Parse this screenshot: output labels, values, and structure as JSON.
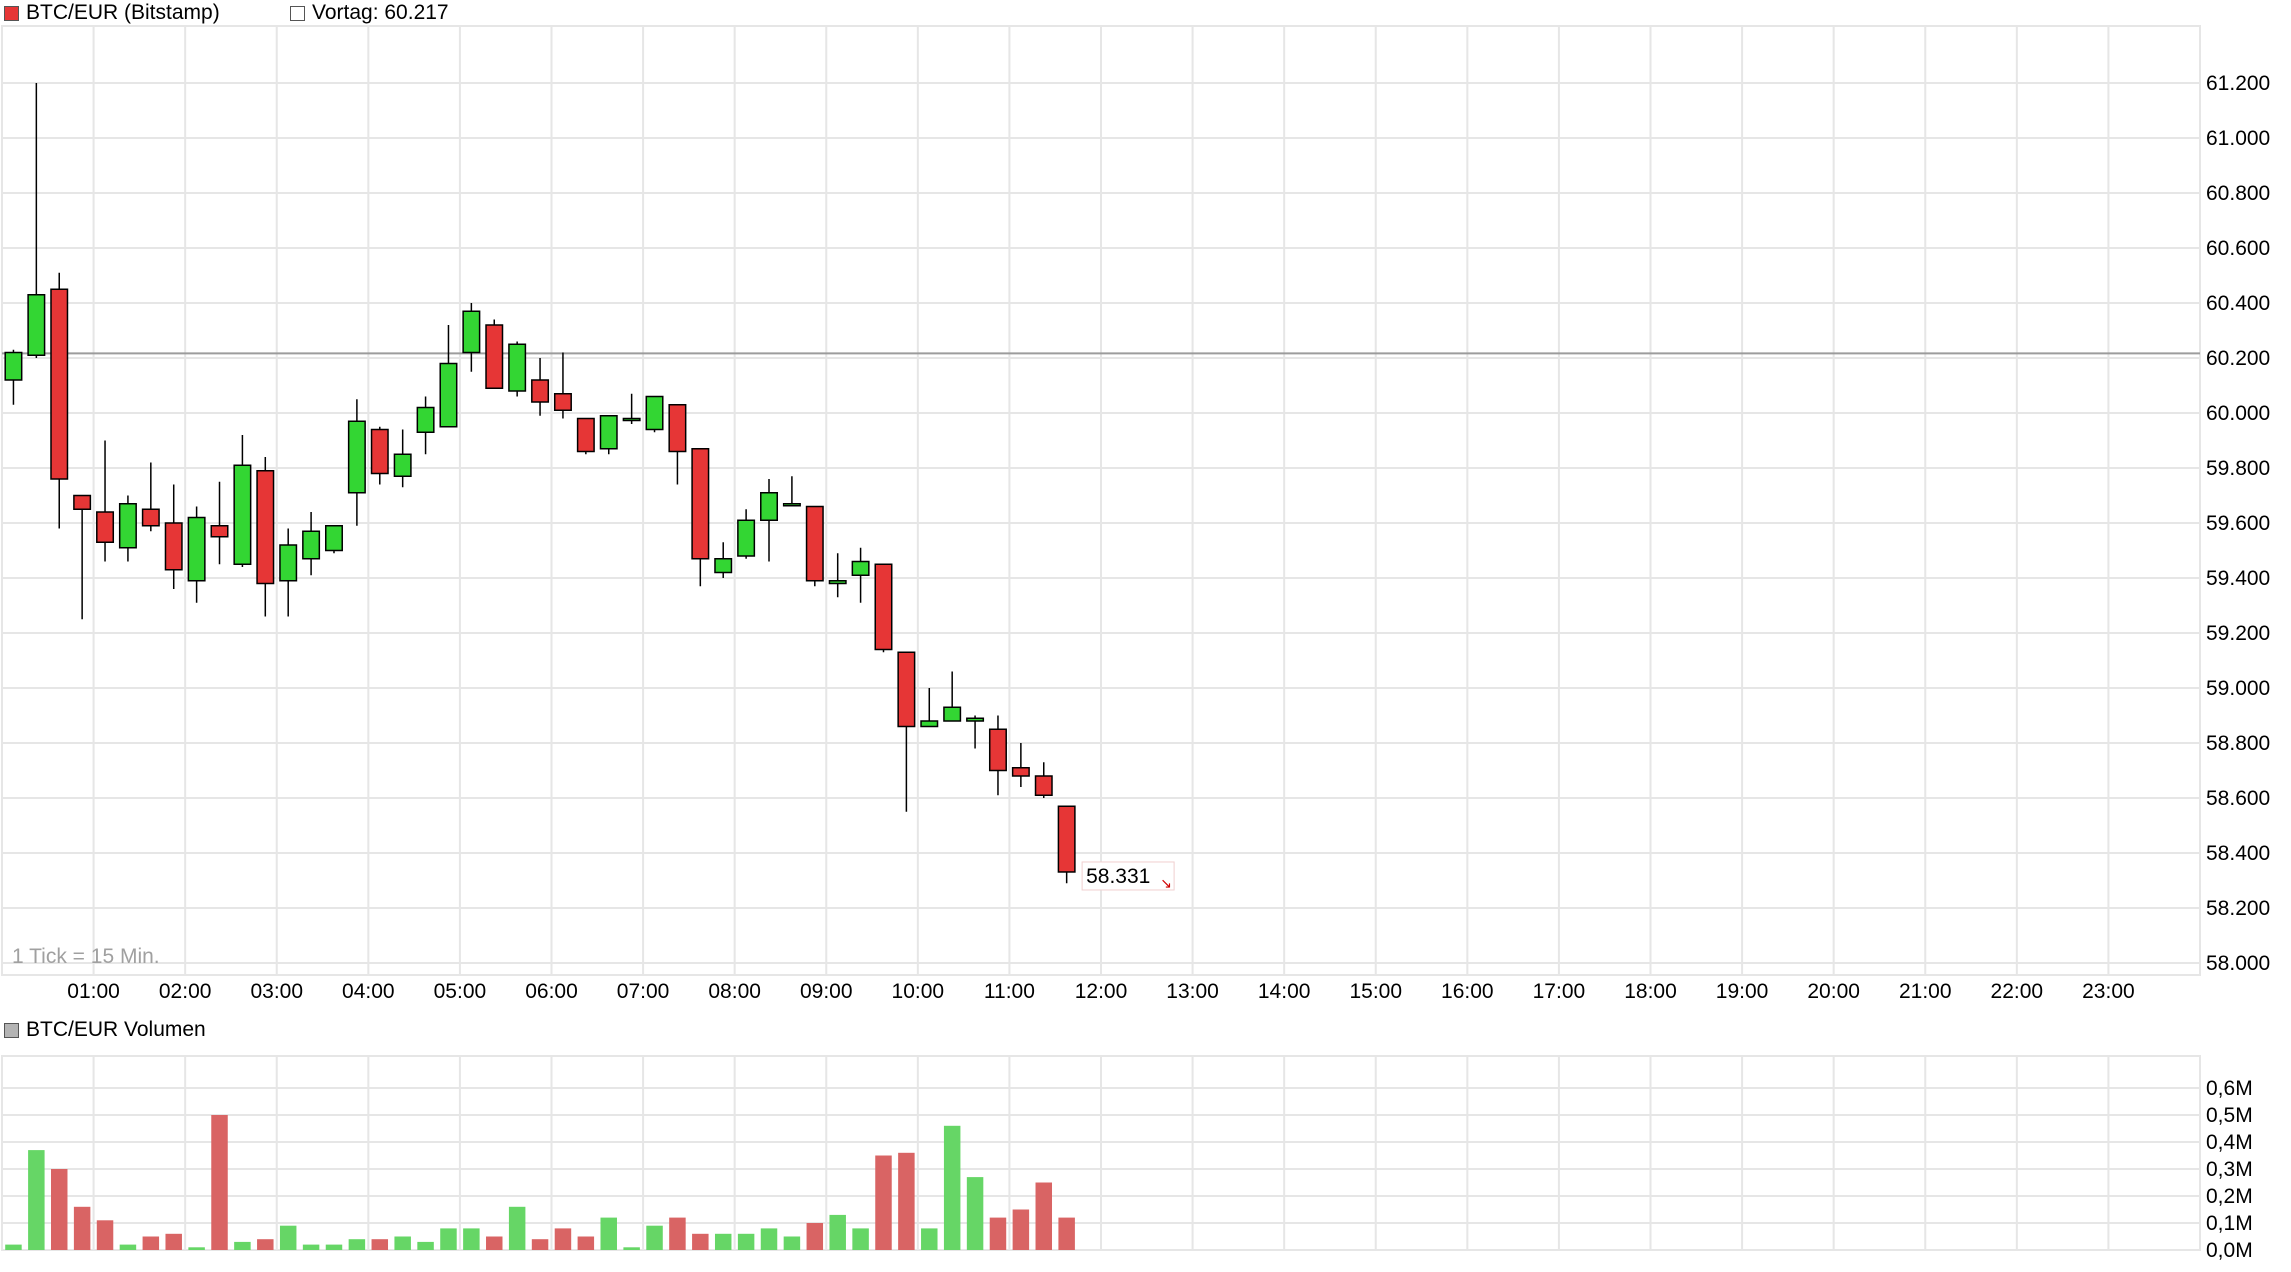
{
  "legends": {
    "price_series": "BTC/EUR (Bitstamp)",
    "previous_close": "Vortag: 60.217",
    "volume_series": "BTC/EUR Volumen"
  },
  "tick_note": "1 Tick = 15 Min.",
  "last_price_label": "58.331",
  "colors": {
    "up": "#33d633",
    "down": "#e63636",
    "volume_up": "#66d666",
    "volume_down": "#d96464",
    "grid": "#e6e6e6",
    "previous_close_line": "#9c9c9c",
    "last_price_arrow": "#d00000"
  },
  "chart_data": [
    {
      "type": "candlestick",
      "title": "BTC/EUR (Bitstamp)",
      "interval": "15 Min.",
      "previous_close": 60217,
      "last_price": 58331,
      "ylim": [
        58000,
        61200
      ],
      "y_ticks": [
        58000,
        58200,
        58400,
        58600,
        58800,
        59000,
        59200,
        59400,
        59600,
        59800,
        60000,
        60200,
        60400,
        60600,
        60800,
        61000,
        61200
      ],
      "y_tick_labels": [
        "58.000",
        "58.200",
        "58.400",
        "58.600",
        "58.800",
        "59.000",
        "59.200",
        "59.400",
        "59.600",
        "59.800",
        "60.000",
        "60.200",
        "60.400",
        "60.600",
        "60.800",
        "61.000",
        "61.200"
      ],
      "x_ticks": [
        "01:00",
        "02:00",
        "03:00",
        "04:00",
        "05:00",
        "06:00",
        "07:00",
        "08:00",
        "09:00",
        "10:00",
        "11:00",
        "12:00",
        "13:00",
        "14:00",
        "15:00",
        "16:00",
        "17:00",
        "18:00",
        "19:00",
        "20:00",
        "21:00",
        "22:00",
        "23:00"
      ],
      "grid": true,
      "candles": [
        {
          "t": "00:00",
          "o": 60120,
          "h": 60230,
          "l": 60030,
          "c": 60220
        },
        {
          "t": "00:15",
          "o": 60210,
          "h": 61200,
          "l": 60200,
          "c": 60430
        },
        {
          "t": "00:30",
          "o": 60450,
          "h": 60510,
          "l": 59580,
          "c": 59760
        },
        {
          "t": "00:45",
          "o": 59700,
          "h": 59700,
          "l": 59250,
          "c": 59650
        },
        {
          "t": "01:00",
          "o": 59640,
          "h": 59900,
          "l": 59460,
          "c": 59530
        },
        {
          "t": "01:15",
          "o": 59510,
          "h": 59700,
          "l": 59460,
          "c": 59670
        },
        {
          "t": "01:30",
          "o": 59650,
          "h": 59820,
          "l": 59570,
          "c": 59590
        },
        {
          "t": "01:45",
          "o": 59600,
          "h": 59740,
          "l": 59360,
          "c": 59430
        },
        {
          "t": "02:00",
          "o": 59390,
          "h": 59660,
          "l": 59310,
          "c": 59620
        },
        {
          "t": "02:15",
          "o": 59590,
          "h": 59750,
          "l": 59450,
          "c": 59550
        },
        {
          "t": "02:30",
          "o": 59450,
          "h": 59920,
          "l": 59440,
          "c": 59810
        },
        {
          "t": "02:45",
          "o": 59790,
          "h": 59840,
          "l": 59260,
          "c": 59380
        },
        {
          "t": "03:00",
          "o": 59390,
          "h": 59580,
          "l": 59260,
          "c": 59520
        },
        {
          "t": "03:15",
          "o": 59470,
          "h": 59640,
          "l": 59410,
          "c": 59570
        },
        {
          "t": "03:30",
          "o": 59500,
          "h": 59590,
          "l": 59490,
          "c": 59590
        },
        {
          "t": "03:45",
          "o": 59710,
          "h": 60050,
          "l": 59590,
          "c": 59970
        },
        {
          "t": "04:00",
          "o": 59940,
          "h": 59950,
          "l": 59740,
          "c": 59780
        },
        {
          "t": "04:15",
          "o": 59770,
          "h": 59940,
          "l": 59730,
          "c": 59850
        },
        {
          "t": "04:30",
          "o": 59930,
          "h": 60060,
          "l": 59850,
          "c": 60020
        },
        {
          "t": "04:45",
          "o": 59950,
          "h": 60320,
          "l": 59950,
          "c": 60180
        },
        {
          "t": "05:00",
          "o": 60220,
          "h": 60400,
          "l": 60150,
          "c": 60370
        },
        {
          "t": "05:15",
          "o": 60320,
          "h": 60340,
          "l": 60090,
          "c": 60090
        },
        {
          "t": "05:30",
          "o": 60080,
          "h": 60260,
          "l": 60060,
          "c": 60250
        },
        {
          "t": "05:45",
          "o": 60120,
          "h": 60200,
          "l": 59990,
          "c": 60040
        },
        {
          "t": "06:00",
          "o": 60070,
          "h": 60220,
          "l": 59980,
          "c": 60010
        },
        {
          "t": "06:15",
          "o": 59980,
          "h": 59980,
          "l": 59850,
          "c": 59860
        },
        {
          "t": "06:30",
          "o": 59870,
          "h": 59990,
          "l": 59850,
          "c": 59990
        },
        {
          "t": "06:45",
          "o": 59980,
          "h": 60070,
          "l": 59960,
          "c": 59980
        },
        {
          "t": "07:00",
          "o": 59940,
          "h": 60060,
          "l": 59930,
          "c": 60060
        },
        {
          "t": "07:15",
          "o": 60030,
          "h": 60030,
          "l": 59740,
          "c": 59860
        },
        {
          "t": "07:30",
          "o": 59870,
          "h": 59870,
          "l": 59370,
          "c": 59470
        },
        {
          "t": "07:45",
          "o": 59420,
          "h": 59530,
          "l": 59400,
          "c": 59470
        },
        {
          "t": "08:00",
          "o": 59480,
          "h": 59650,
          "l": 59470,
          "c": 59610
        },
        {
          "t": "08:15",
          "o": 59610,
          "h": 59760,
          "l": 59460,
          "c": 59710
        },
        {
          "t": "08:30",
          "o": 59670,
          "h": 59770,
          "l": 59660,
          "c": 59670
        },
        {
          "t": "08:45",
          "o": 59660,
          "h": 59660,
          "l": 59370,
          "c": 59390
        },
        {
          "t": "09:00",
          "o": 59380,
          "h": 59490,
          "l": 59330,
          "c": 59390
        },
        {
          "t": "09:15",
          "o": 59410,
          "h": 59510,
          "l": 59310,
          "c": 59460
        },
        {
          "t": "09:30",
          "o": 59450,
          "h": 59450,
          "l": 59130,
          "c": 59140
        },
        {
          "t": "09:45",
          "o": 59130,
          "h": 59130,
          "l": 58550,
          "c": 58860
        },
        {
          "t": "10:00",
          "o": 58860,
          "h": 59000,
          "l": 58860,
          "c": 58880
        },
        {
          "t": "10:15",
          "o": 58880,
          "h": 59060,
          "l": 58880,
          "c": 58930
        },
        {
          "t": "10:30",
          "o": 58880,
          "h": 58900,
          "l": 58780,
          "c": 58890
        },
        {
          "t": "10:45",
          "o": 58850,
          "h": 58900,
          "l": 58610,
          "c": 58700
        },
        {
          "t": "11:00",
          "o": 58710,
          "h": 58800,
          "l": 58640,
          "c": 58680
        },
        {
          "t": "11:15",
          "o": 58680,
          "h": 58730,
          "l": 58600,
          "c": 58610
        },
        {
          "t": "11:30",
          "o": 58570,
          "h": 58570,
          "l": 58290,
          "c": 58331
        }
      ]
    },
    {
      "type": "bar",
      "title": "BTC/EUR Volumen",
      "unit": "M",
      "ylim": [
        0,
        0.6
      ],
      "y_ticks": [
        0,
        0.1,
        0.2,
        0.3,
        0.4,
        0.5,
        0.6
      ],
      "y_tick_labels": [
        "0,0M",
        "0,1M",
        "0,2M",
        "0,3M",
        "0,4M",
        "0,5M",
        "0,6M"
      ],
      "values": [
        0.02,
        0.37,
        0.3,
        0.16,
        0.11,
        0.02,
        0.05,
        0.06,
        0.01,
        0.5,
        0.03,
        0.04,
        0.09,
        0.02,
        0.02,
        0.04,
        0.04,
        0.05,
        0.03,
        0.08,
        0.08,
        0.05,
        0.16,
        0.04,
        0.08,
        0.05,
        0.12,
        0.01,
        0.09,
        0.12,
        0.06,
        0.06,
        0.06,
        0.08,
        0.05,
        0.1,
        0.13,
        0.08,
        0.35,
        0.36,
        0.08,
        0.46,
        0.27,
        0.12,
        0.15,
        0.25,
        0.12
      ]
    }
  ]
}
